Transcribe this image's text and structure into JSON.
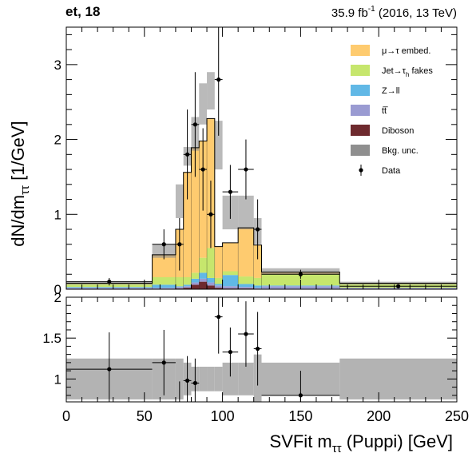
{
  "header": {
    "channel": "et, 18",
    "lumi_value": "35.9 fb",
    "lumi_exp": "-1",
    "lumi_rest": " (2016, 13 TeV)"
  },
  "chart_data": [
    {
      "type": "bar",
      "panel": "main",
      "stacked": true,
      "xlabel": "SVFit mττ (Puppi) [GeV]",
      "ylabel": "dN/dmττ [1/GeV]",
      "xlim": [
        0,
        250
      ],
      "ylim": [
        0,
        3.5
      ],
      "xticks": [
        "0",
        "50",
        "100",
        "150",
        "200",
        "250"
      ],
      "yticks": [
        "0",
        "1",
        "2",
        "3"
      ],
      "bin_edges": [
        0,
        55,
        70,
        75,
        80,
        85,
        90,
        95,
        100,
        110,
        120,
        125,
        175,
        250
      ],
      "series": [
        {
          "name": "Diboson",
          "color": "#6e2a2e",
          "values": [
            0,
            0,
            0.01,
            0.02,
            0.06,
            0.1,
            0.05,
            0.02,
            0.01,
            0.01,
            0,
            0,
            0
          ]
        },
        {
          "name": "t̅t̅",
          "color": "#9a9bd2",
          "values": [
            0.02,
            0.02,
            0.02,
            0.02,
            0.03,
            0.04,
            0.04,
            0.03,
            0.03,
            0.02,
            0.02,
            0.04,
            0.02
          ]
        },
        {
          "name": "Z→ll",
          "color": "#61b8e6",
          "values": [
            0.01,
            0.04,
            0.01,
            0.02,
            0.05,
            0.08,
            0.06,
            0.02,
            0.15,
            0.04,
            0.03,
            0.01,
            0
          ]
        },
        {
          "name": "Jet→τh fakes",
          "color": "#c6e66d",
          "values": [
            0.04,
            0.1,
            0.12,
            0.1,
            0.08,
            0.2,
            0.4,
            0.08,
            0.05,
            0.1,
            0.1,
            0.15,
            0.05
          ]
        },
        {
          "name": "μ→τ embed.",
          "color": "#fecb6f",
          "values": [
            0.01,
            0.3,
            0.64,
            1.4,
            1.67,
            1.56,
            1.73,
            0.42,
            0.38,
            0.65,
            0.44,
            0.03,
            0.01
          ]
        }
      ],
      "bkg_unc": {
        "name": "Bkg. unc.",
        "color": "#8f8f8f",
        "up": [
          0.1,
          0.6,
          1.4,
          1.9,
          2.3,
          2.75,
          2.9,
          2.25,
          1.25,
          1.25,
          0.95,
          0.28,
          0.1
        ],
        "down": [
          0.06,
          0.42,
          0.95,
          1.65,
          1.85,
          2.2,
          2.4,
          1.6,
          0.8,
          0.8,
          0.6,
          0.2,
          0.06
        ]
      },
      "data_points": {
        "name": "Data",
        "x": [
          27.5,
          62.5,
          72.5,
          77.5,
          82.5,
          87.5,
          92.5,
          97.5,
          105,
          115,
          122.5,
          150,
          212.5
        ],
        "y": [
          0.1,
          0.6,
          0.6,
          1.8,
          2.2,
          1.6,
          1.0,
          2.8,
          1.3,
          1.6,
          0.8,
          0.2,
          0.04
        ],
        "yerr": [
          0.05,
          0.2,
          0.35,
          0.6,
          0.7,
          0.55,
          0.45,
          0.75,
          0.36,
          0.4,
          0.4,
          0.06,
          0.025
        ],
        "xerr": [
          27.5,
          7.5,
          2.5,
          2.5,
          2.5,
          2.5,
          2.5,
          2.5,
          5,
          5,
          2.5,
          25,
          37.5
        ]
      },
      "legend_placement": "top-right"
    },
    {
      "type": "scatter",
      "panel": "ratio",
      "xlim": [
        0,
        250
      ],
      "ylim": [
        0.72,
        2.0
      ],
      "yticks": [
        "1",
        "1.5",
        "2"
      ],
      "unc_band_halfwidth": [
        0.25,
        0.25,
        0.25,
        0.2,
        0.15,
        0.15,
        0.15,
        0.15,
        0.2,
        0.2,
        0.3,
        0.2,
        0.25
      ],
      "ratio": {
        "x": [
          27.5,
          62.5,
          72.5,
          77.5,
          82.5,
          97.5,
          105,
          115,
          122.5,
          150
        ],
        "y": [
          1.12,
          1.2,
          0.62,
          0.98,
          0.95,
          1.76,
          1.33,
          1.55,
          1.37,
          0.8
        ],
        "yerr": [
          0.45,
          0.4,
          0.35,
          0.3,
          0.3,
          0.45,
          0.3,
          0.4,
          0.45,
          0.3
        ],
        "xerr": [
          27.5,
          7.5,
          2.5,
          2.5,
          2.5,
          2.5,
          5,
          5,
          2.5,
          25
        ]
      }
    }
  ]
}
